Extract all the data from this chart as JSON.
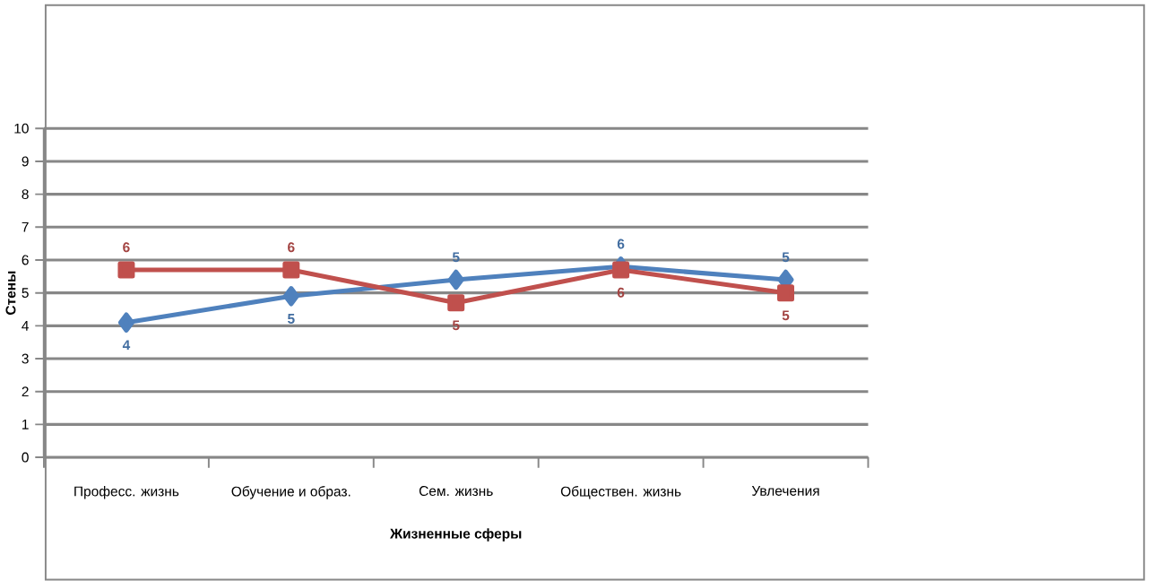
{
  "chart_data": {
    "type": "line",
    "xlabel": "Жизненные сферы",
    "ylabel": "Стены",
    "categories": [
      "Професс. жизнь",
      "Обучение и образ.",
      "Сем. жизнь",
      "Обществен. жизнь",
      "Увлечения"
    ],
    "series": [
      {
        "color": "#4f81bd",
        "marker": "diamond",
        "values": [
          4.1,
          4.9,
          5.4,
          5.8,
          5.4
        ],
        "value_labels": [
          "4",
          "5",
          "5",
          "6",
          "5"
        ]
      },
      {
        "color": "#c0504d",
        "marker": "square",
        "values": [
          5.7,
          5.7,
          4.7,
          5.7,
          5.0
        ],
        "value_labels": [
          "6",
          "6",
          "5",
          "6",
          "5"
        ]
      }
    ],
    "ylim": [
      0,
      10
    ],
    "yticks": [
      0,
      1,
      2,
      3,
      4,
      5,
      6,
      7,
      8,
      9,
      10
    ],
    "grid": "y",
    "line_style": "solid"
  }
}
